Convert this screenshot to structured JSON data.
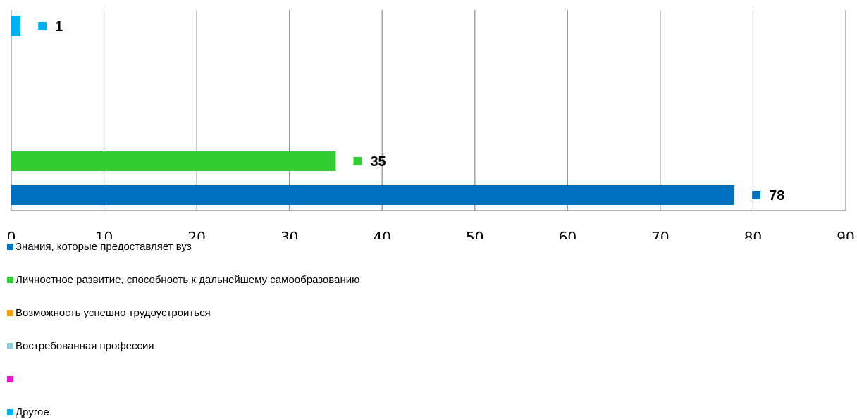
{
  "chart_data": {
    "type": "bar",
    "orientation": "horizontal",
    "xlim": [
      0,
      90
    ],
    "x_ticks": [
      "0",
      "10",
      "20",
      "30",
      "40",
      "50",
      "60",
      "70",
      "80",
      "90"
    ],
    "grid": true,
    "legend_position": "bottom",
    "series": [
      {
        "name": "Знания, которые предоставляет вуз",
        "value": 78,
        "label": "78",
        "color": "#0070c0"
      },
      {
        "name": "Личностное развитие, способность к дальнейшему самообразованию",
        "value": 35,
        "label": "35",
        "color": "#33cc33"
      },
      {
        "name": "Возможность успешно трудоустроиться",
        "value": null,
        "label": "",
        "color": "#f5a00f"
      },
      {
        "name": "Востребованная профессия",
        "value": null,
        "label": "",
        "color": "#92cddc"
      },
      {
        "name": "",
        "value": null,
        "label": "",
        "color": "#e81bc9"
      },
      {
        "name": "Другое",
        "value": 1,
        "label": "1",
        "color": "#00b0f0"
      }
    ]
  }
}
